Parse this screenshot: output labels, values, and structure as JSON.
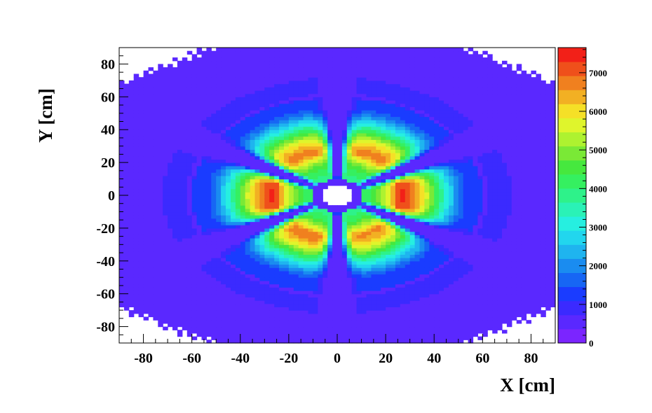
{
  "chart_data": {
    "type": "heatmap",
    "title": "",
    "xlabel": "X [cm]",
    "ylabel": "Y [cm]",
    "xlim": [
      -90,
      90
    ],
    "ylim": [
      -90,
      90
    ],
    "x_ticks": [
      -80,
      -60,
      -40,
      -20,
      0,
      20,
      40,
      60,
      80
    ],
    "y_ticks": [
      -80,
      -60,
      -40,
      -20,
      0,
      20,
      40,
      60,
      80
    ],
    "z_range": [
      0,
      7650
    ],
    "z_ticks": [
      0,
      1000,
      2000,
      3000,
      4000,
      5000,
      6000,
      7000
    ],
    "colorbar_levels": 20,
    "palette": [
      "#7b25ff",
      "#5a28ff",
      "#3b2aff",
      "#1a3cff",
      "#1766f4",
      "#1a8cf0",
      "#1fb4ef",
      "#22d6ee",
      "#26efe0",
      "#2af2b6",
      "#2ef28a",
      "#35f060",
      "#46e83e",
      "#7ae936",
      "#aef230",
      "#dff52c",
      "#f5e027",
      "#f2b023",
      "#f0801f",
      "#ef501b",
      "#f22018"
    ],
    "sectors": [
      {
        "center_angle_deg": 0,
        "peak": 7300,
        "peak_radius_cm": 26
      },
      {
        "center_angle_deg": 60,
        "peak": 6700,
        "peak_radius_cm": 27
      },
      {
        "center_angle_deg": 120,
        "peak": 6700,
        "peak_radius_cm": 27
      },
      {
        "center_angle_deg": 180,
        "peak": 7300,
        "peak_radius_cm": 26
      },
      {
        "center_angle_deg": 240,
        "peak": 6800,
        "peak_radius_cm": 25
      },
      {
        "center_angle_deg": 300,
        "peak": 6600,
        "peak_radius_cm": 25
      }
    ],
    "central_hole_radius_cm": 7,
    "grid": false,
    "legend": "colorbar-right"
  }
}
